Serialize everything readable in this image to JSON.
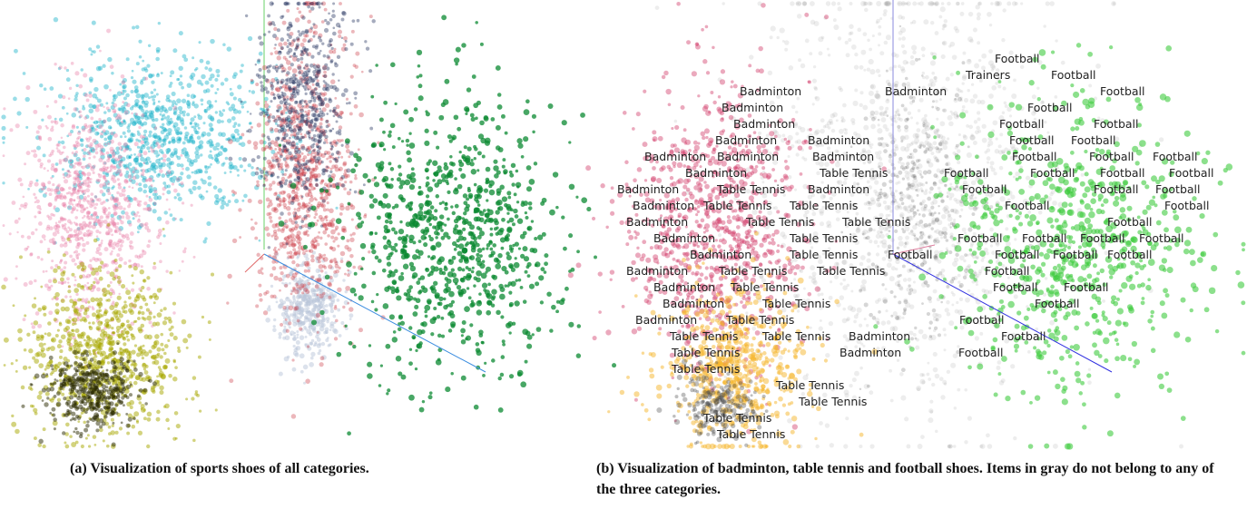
{
  "figure_a": {
    "caption": "(a) Visualization of sports shoes of all categories.",
    "colors": {
      "cyan": "#1fb3c9",
      "pink": "#e87fa8",
      "olive": "#a8a800",
      "red": "#c8303c",
      "navy": "#1f2e5a",
      "lightblue": "#b9c5d9",
      "green": "#0b8a32"
    }
  },
  "figure_b": {
    "caption": "(b) Visualization of badminton, table tennis and football shoes. Items in gray do not belong to any of the three categories.",
    "labels": {
      "badminton": "Badminton",
      "table_tennis": "Table Tennis",
      "football": "Football",
      "trainers": "Trainers"
    },
    "colors": {
      "badminton": "#d2416d",
      "table_tennis": "#f6b52c",
      "football": "#3fcc3f",
      "other": "#9a9a9a"
    }
  }
}
